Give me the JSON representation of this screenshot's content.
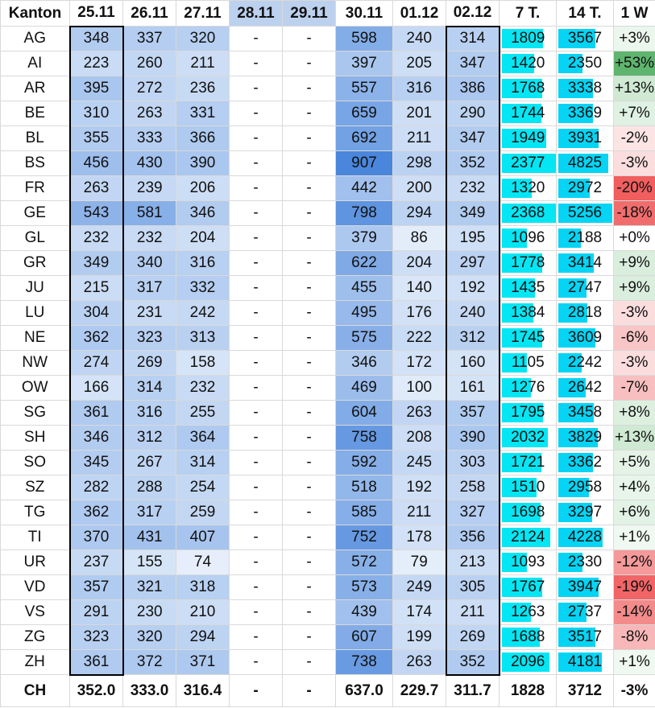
{
  "chart_data": {
    "type": "table",
    "columns": [
      "Kanton",
      "25.11",
      "26.11",
      "27.11",
      "28.11",
      "29.11",
      "30.11",
      "01.12",
      "02.12",
      "7 T.",
      "14 T.",
      "1 W"
    ],
    "date_columns": [
      "25.11",
      "26.11",
      "27.11",
      "28.11",
      "29.11",
      "30.11",
      "01.12",
      "02.12"
    ],
    "rows": [
      {
        "kanton": "AG",
        "days": [
          "348",
          "337",
          "320",
          "-",
          "-",
          "598",
          "240",
          "314"
        ],
        "t7": 1809,
        "t14": 3567,
        "w1": "+3%"
      },
      {
        "kanton": "AI",
        "days": [
          "223",
          "260",
          "211",
          "-",
          "-",
          "397",
          "205",
          "347"
        ],
        "t7": 1420,
        "t14": 2350,
        "w1": "+53%"
      },
      {
        "kanton": "AR",
        "days": [
          "395",
          "272",
          "236",
          "-",
          "-",
          "557",
          "316",
          "386"
        ],
        "t7": 1768,
        "t14": 3338,
        "w1": "+13%"
      },
      {
        "kanton": "BE",
        "days": [
          "310",
          "263",
          "331",
          "-",
          "-",
          "659",
          "201",
          "290"
        ],
        "t7": 1744,
        "t14": 3369,
        "w1": "+7%"
      },
      {
        "kanton": "BL",
        "days": [
          "355",
          "333",
          "366",
          "-",
          "-",
          "692",
          "211",
          "347"
        ],
        "t7": 1949,
        "t14": 3931,
        "w1": "-2%"
      },
      {
        "kanton": "BS",
        "days": [
          "456",
          "430",
          "390",
          "-",
          "-",
          "907",
          "298",
          "352"
        ],
        "t7": 2377,
        "t14": 4825,
        "w1": "-3%"
      },
      {
        "kanton": "FR",
        "days": [
          "263",
          "239",
          "206",
          "-",
          "-",
          "442",
          "200",
          "232"
        ],
        "t7": 1320,
        "t14": 2972,
        "w1": "-20%"
      },
      {
        "kanton": "GE",
        "days": [
          "543",
          "581",
          "346",
          "-",
          "-",
          "798",
          "294",
          "349"
        ],
        "t7": 2368,
        "t14": 5256,
        "w1": "-18%"
      },
      {
        "kanton": "GL",
        "days": [
          "232",
          "232",
          "204",
          "-",
          "-",
          "379",
          "86",
          "195"
        ],
        "t7": 1096,
        "t14": 2188,
        "w1": "+0%"
      },
      {
        "kanton": "GR",
        "days": [
          "349",
          "340",
          "316",
          "-",
          "-",
          "622",
          "204",
          "297"
        ],
        "t7": 1778,
        "t14": 3414,
        "w1": "+9%"
      },
      {
        "kanton": "JU",
        "days": [
          "215",
          "317",
          "332",
          "-",
          "-",
          "455",
          "140",
          "192"
        ],
        "t7": 1435,
        "t14": 2747,
        "w1": "+9%"
      },
      {
        "kanton": "LU",
        "days": [
          "304",
          "231",
          "242",
          "-",
          "-",
          "495",
          "176",
          "240"
        ],
        "t7": 1384,
        "t14": 2818,
        "w1": "-3%"
      },
      {
        "kanton": "NE",
        "days": [
          "362",
          "323",
          "313",
          "-",
          "-",
          "575",
          "222",
          "312"
        ],
        "t7": 1745,
        "t14": 3609,
        "w1": "-6%"
      },
      {
        "kanton": "NW",
        "days": [
          "274",
          "269",
          "158",
          "-",
          "-",
          "346",
          "172",
          "160"
        ],
        "t7": 1105,
        "t14": 2242,
        "w1": "-3%"
      },
      {
        "kanton": "OW",
        "days": [
          "166",
          "314",
          "232",
          "-",
          "-",
          "469",
          "100",
          "161"
        ],
        "t7": 1276,
        "t14": 2642,
        "w1": "-7%"
      },
      {
        "kanton": "SG",
        "days": [
          "361",
          "316",
          "255",
          "-",
          "-",
          "604",
          "263",
          "357"
        ],
        "t7": 1795,
        "t14": 3458,
        "w1": "+8%"
      },
      {
        "kanton": "SH",
        "days": [
          "346",
          "312",
          "364",
          "-",
          "-",
          "758",
          "208",
          "390"
        ],
        "t7": 2032,
        "t14": 3829,
        "w1": "+13%"
      },
      {
        "kanton": "SO",
        "days": [
          "345",
          "267",
          "314",
          "-",
          "-",
          "592",
          "245",
          "303"
        ],
        "t7": 1721,
        "t14": 3362,
        "w1": "+5%"
      },
      {
        "kanton": "SZ",
        "days": [
          "282",
          "288",
          "254",
          "-",
          "-",
          "518",
          "192",
          "258"
        ],
        "t7": 1510,
        "t14": 2958,
        "w1": "+4%"
      },
      {
        "kanton": "TG",
        "days": [
          "362",
          "317",
          "259",
          "-",
          "-",
          "585",
          "211",
          "327"
        ],
        "t7": 1698,
        "t14": 3297,
        "w1": "+6%"
      },
      {
        "kanton": "TI",
        "days": [
          "370",
          "431",
          "407",
          "-",
          "-",
          "752",
          "178",
          "356"
        ],
        "t7": 2124,
        "t14": 4228,
        "w1": "+1%"
      },
      {
        "kanton": "UR",
        "days": [
          "237",
          "155",
          "74",
          "-",
          "-",
          "572",
          "79",
          "213"
        ],
        "t7": 1093,
        "t14": 2330,
        "w1": "-12%"
      },
      {
        "kanton": "VD",
        "days": [
          "357",
          "321",
          "318",
          "-",
          "-",
          "573",
          "249",
          "305"
        ],
        "t7": 1767,
        "t14": 3947,
        "w1": "-19%"
      },
      {
        "kanton": "VS",
        "days": [
          "291",
          "230",
          "210",
          "-",
          "-",
          "439",
          "174",
          "211"
        ],
        "t7": 1263,
        "t14": 2737,
        "w1": "-14%"
      },
      {
        "kanton": "ZG",
        "days": [
          "323",
          "320",
          "294",
          "-",
          "-",
          "607",
          "199",
          "269"
        ],
        "t7": 1688,
        "t14": 3517,
        "w1": "-8%"
      },
      {
        "kanton": "ZH",
        "days": [
          "361",
          "372",
          "371",
          "-",
          "-",
          "738",
          "263",
          "352"
        ],
        "t7": 2096,
        "t14": 4181,
        "w1": "+1%"
      }
    ],
    "total": {
      "kanton": "CH",
      "days": [
        "352.0",
        "333.0",
        "316.4",
        "-",
        "-",
        "637.0",
        "229.7",
        "311.7"
      ],
      "t7": "1828",
      "t14": "3712",
      "w1": "-3%"
    },
    "bar_max": {
      "t7": 2440,
      "t14": 5450
    }
  },
  "colors": {
    "blue_low": "#e5eefa",
    "blue_high": "#4a86dc",
    "header_light": "#bcd1ee",
    "bar_7": "#05e6f4",
    "bar_14": "#05d4f4",
    "pos_low": "#f3faf4",
    "pos_high": "#5fb56e",
    "neg_low": "#fdf3f4",
    "neg_high": "#f05e5e",
    "box_border": "#000000"
  }
}
